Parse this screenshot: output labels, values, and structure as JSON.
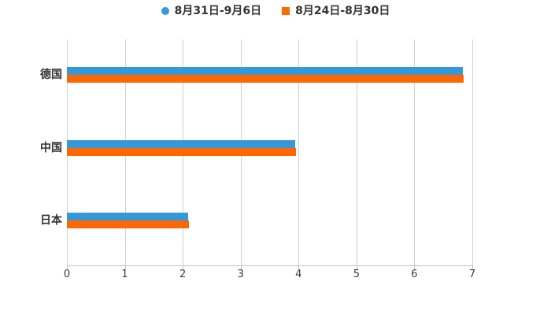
{
  "legend": {
    "items": [
      {
        "label": "8月31日-9月6日",
        "color": "#3498db",
        "marker": "circle"
      },
      {
        "label": "8月24日-8月30日",
        "color": "#ff6800",
        "marker": "square"
      }
    ]
  },
  "chart_data": {
    "type": "bar",
    "orientation": "horizontal",
    "title": "",
    "xlabel": "",
    "ylabel": "",
    "categories": [
      "德国",
      "中国",
      "日本"
    ],
    "series": [
      {
        "name": "8月31日-9月6日",
        "color": "#3498db",
        "values": [
          6.84,
          3.94,
          2.09
        ]
      },
      {
        "name": "8月24日-8月30日",
        "color": "#ff6800",
        "values": [
          6.85,
          3.95,
          2.11
        ]
      }
    ],
    "xlim": [
      0,
      7
    ],
    "xticks": [
      0,
      1,
      2,
      3,
      4,
      5,
      6,
      7
    ],
    "grid": true,
    "legend_position": "top"
  },
  "colors": {
    "grid": "#d0d0d0",
    "axis": "#c2c2c2",
    "text": "#333333",
    "tick_text": "#3c3c3c",
    "background": "#ffffff"
  }
}
